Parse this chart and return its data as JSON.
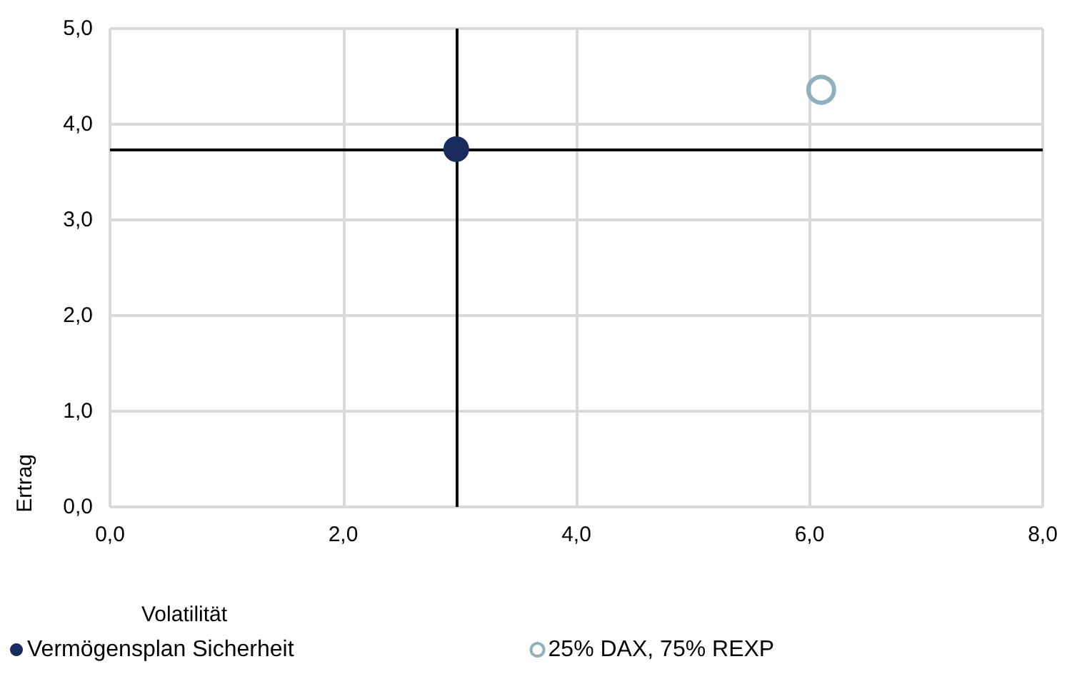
{
  "chart_data": {
    "type": "scatter",
    "xlabel": "Volatilität",
    "ylabel": "Ertrag",
    "series": [
      {
        "name": "Vermögensplan Sicherheit",
        "color": "#1a2b5e",
        "x": [
          2.97
        ],
        "values": [
          3.74
        ],
        "marker": "circle"
      },
      {
        "name": "25% DAX, 75% REXP",
        "color": "#8fb0bd",
        "x": [
          6.1
        ],
        "values": [
          4.36
        ],
        "marker": "circle"
      }
    ],
    "xlim": [
      0,
      8
    ],
    "xticks": [
      {
        "value": 0,
        "label": "0,0"
      },
      {
        "value": 2,
        "label": "2,0"
      },
      {
        "value": 4,
        "label": "4,0"
      },
      {
        "value": 6,
        "label": "6,0"
      },
      {
        "value": 8,
        "label": "8,0"
      }
    ],
    "ylim": [
      0,
      5
    ],
    "yticks": [
      {
        "value": 0,
        "label": "0,0"
      },
      {
        "value": 1,
        "label": "1,0"
      },
      {
        "value": 2,
        "label": "2,0"
      },
      {
        "value": 3,
        "label": "3,0"
      },
      {
        "value": 4,
        "label": "4,0"
      },
      {
        "value": 5,
        "label": "5,0"
      }
    ],
    "ref_lines": [
      {
        "axis": "x",
        "value": 2.97,
        "color": "#000000"
      },
      {
        "axis": "y",
        "value": 3.74,
        "color": "#000000"
      }
    ],
    "grid": true,
    "legend": "bottom left"
  }
}
